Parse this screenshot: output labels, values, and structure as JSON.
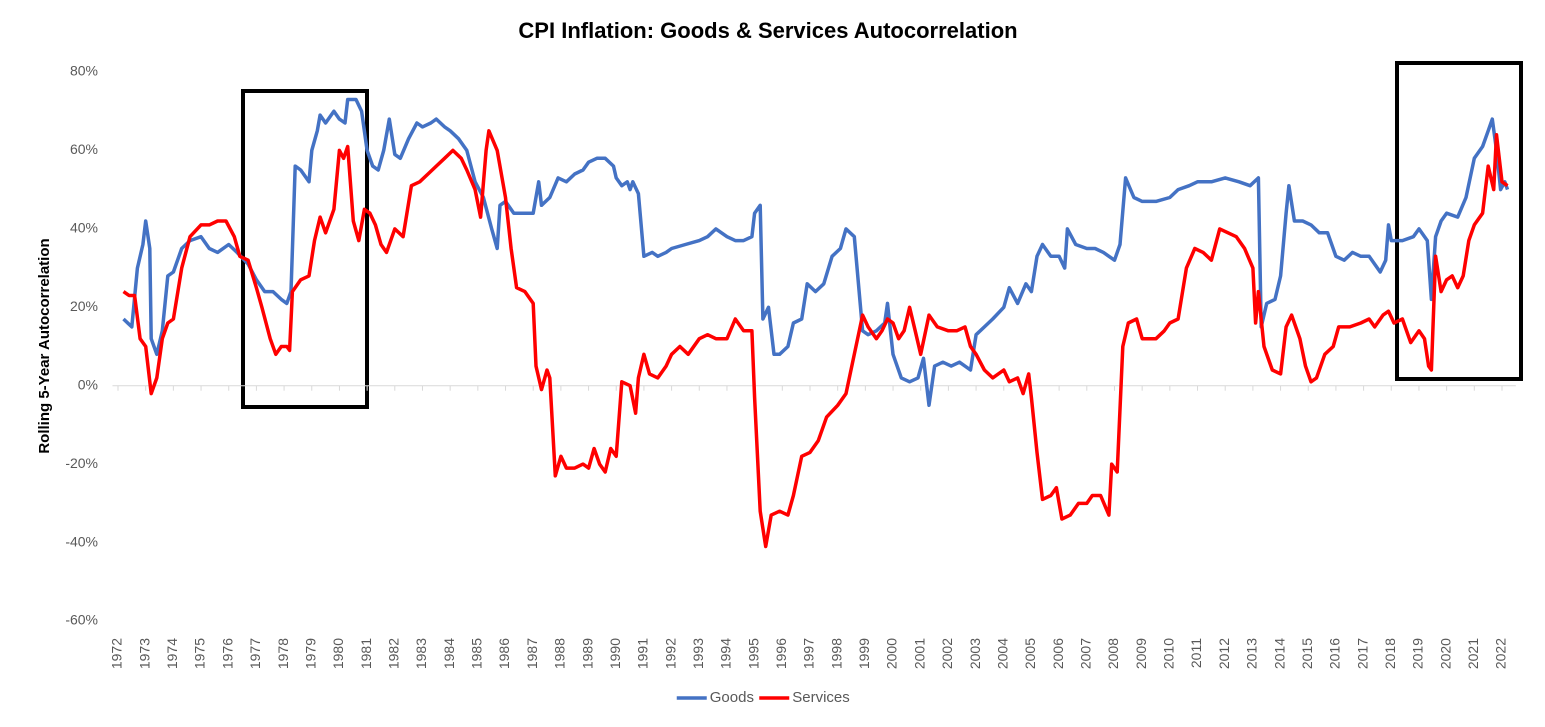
{
  "chart_data": {
    "type": "line",
    "title": "CPI Inflation: Goods & Services Autocorrelation",
    "y_label": "Rolling 5-Year Autocorrelation",
    "xlim": [
      1971.8,
      2022.5
    ],
    "xticks": [
      1972,
      1973,
      1974,
      1975,
      1976,
      1977,
      1978,
      1979,
      1980,
      1981,
      1982,
      1983,
      1984,
      1985,
      1986,
      1987,
      1988,
      1989,
      1990,
      1991,
      1992,
      1993,
      1994,
      1995,
      1996,
      1997,
      1998,
      1999,
      2000,
      2001,
      2002,
      2003,
      2004,
      2005,
      2006,
      2007,
      2008,
      2009,
      2010,
      2011,
      2012,
      2013,
      2014,
      2015,
      2016,
      2017,
      2018,
      2019,
      2020,
      2021,
      2022
    ],
    "ylim": [
      -60,
      80
    ],
    "yticks": [
      {
        "value": -60,
        "label": "-60%"
      },
      {
        "value": -40,
        "label": "-40%"
      },
      {
        "value": -20,
        "label": "-20%"
      },
      {
        "value": 0,
        "label": "0%"
      },
      {
        "value": 20,
        "label": "20%"
      },
      {
        "value": 40,
        "label": "40%"
      },
      {
        "value": 60,
        "label": "60%"
      },
      {
        "value": 80,
        "label": "80%"
      }
    ],
    "grid": false,
    "legend": "bottom",
    "series": [
      {
        "name": "Goods",
        "color": "#4472c4",
        "x": [
          1972.2,
          1972.5,
          1972.7,
          1972.9,
          1973.0,
          1973.15,
          1973.2,
          1973.4,
          1973.6,
          1973.8,
          1974.0,
          1974.3,
          1974.6,
          1975.0,
          1975.3,
          1975.6,
          1976.0,
          1976.3,
          1976.7,
          1977.0,
          1977.3,
          1977.6,
          1977.9,
          1978.1,
          1978.25,
          1978.4,
          1978.6,
          1978.9,
          1979.0,
          1979.2,
          1979.3,
          1979.5,
          1979.8,
          1980.0,
          1980.2,
          1980.3,
          1980.6,
          1980.8,
          1981.0,
          1981.2,
          1981.4,
          1981.6,
          1981.8,
          1982.0,
          1982.2,
          1982.5,
          1982.8,
          1983.0,
          1983.3,
          1983.5,
          1983.8,
          1984.0,
          1984.3,
          1984.6,
          1984.9,
          1985.2,
          1985.5,
          1985.7,
          1985.8,
          1986.0,
          1986.3,
          1986.6,
          1987.0,
          1987.2,
          1987.3,
          1987.6,
          1987.9,
          1988.2,
          1988.5,
          1988.8,
          1989.0,
          1989.3,
          1989.6,
          1989.9,
          1990.0,
          1990.2,
          1990.4,
          1990.5,
          1990.6,
          1990.8,
          1991.0,
          1991.3,
          1991.5,
          1991.8,
          1992.0,
          1992.5,
          1993.0,
          1993.3,
          1993.6,
          1994.0,
          1994.3,
          1994.6,
          1994.9,
          1995.0,
          1995.2,
          1995.3,
          1995.5,
          1995.7,
          1995.9,
          1996.2,
          1996.4,
          1996.7,
          1996.9,
          1997.2,
          1997.5,
          1997.8,
          1998.1,
          1998.3,
          1998.6,
          1998.9,
          1999.1,
          1999.4,
          1999.7,
          1999.8,
          2000.0,
          2000.3,
          2000.6,
          2000.9,
          2001.1,
          2001.3,
          2001.5,
          2001.8,
          2002.1,
          2002.4,
          2002.8,
          2003.0,
          2003.3,
          2003.6,
          2004.0,
          2004.2,
          2004.5,
          2004.8,
          2005.0,
          2005.2,
          2005.4,
          2005.7,
          2006.0,
          2006.2,
          2006.3,
          2006.6,
          2007.0,
          2007.3,
          2007.6,
          2007.8,
          2008.0,
          2008.2,
          2008.4,
          2008.7,
          2009.0,
          2009.5,
          2010.0,
          2010.3,
          2010.7,
          2011.0,
          2011.5,
          2012.0,
          2012.5,
          2012.9,
          2013.2,
          2013.3,
          2013.5,
          2013.8,
          2014.0,
          2014.2,
          2014.3,
          2014.5,
          2014.8,
          2015.1,
          2015.4,
          2015.7,
          2016.0,
          2016.3,
          2016.6,
          2016.9,
          2017.2,
          2017.6,
          2017.8,
          2017.9,
          2018.0,
          2018.4,
          2018.8,
          2019.0,
          2019.3,
          2019.45,
          2019.6,
          2019.8,
          2020.0,
          2020.4,
          2020.7,
          2021.0,
          2021.3,
          2021.5,
          2021.65,
          2021.8,
          2021.95,
          2022.1,
          2022.2
        ],
        "values": [
          17,
          15,
          30,
          36,
          42,
          35,
          12,
          8,
          14,
          28,
          29,
          35,
          37,
          38,
          35,
          34,
          36,
          34,
          31,
          27,
          24,
          24,
          22,
          21,
          24,
          56,
          55,
          52,
          60,
          65,
          69,
          67,
          70,
          68,
          67,
          73,
          73,
          70,
          60,
          56,
          55,
          60,
          68,
          59,
          58,
          63,
          67,
          66,
          67,
          68,
          66,
          65,
          63,
          60,
          52,
          48,
          40,
          35,
          46,
          47,
          44,
          44,
          44,
          52,
          46,
          48,
          53,
          52,
          54,
          55,
          57,
          58,
          58,
          56,
          53,
          51,
          52,
          50,
          52,
          49,
          33,
          34,
          33,
          34,
          35,
          36,
          37,
          38,
          40,
          38,
          37,
          37,
          38,
          44,
          46,
          17,
          20,
          8,
          8,
          10,
          16,
          17,
          26,
          24,
          26,
          33,
          35,
          40,
          38,
          14,
          13,
          14,
          16,
          21,
          8,
          2,
          1,
          2,
          7,
          -5,
          5,
          6,
          5,
          6,
          4,
          13,
          15,
          17,
          20,
          25,
          21,
          26,
          24,
          33,
          36,
          33,
          33,
          30,
          40,
          36,
          35,
          35,
          34,
          33,
          32,
          36,
          53,
          48,
          47,
          47,
          48,
          50,
          51,
          52,
          52,
          53,
          52,
          51,
          53,
          15,
          21,
          22,
          28,
          44,
          51,
          42,
          42,
          41,
          39,
          39,
          33,
          32,
          34,
          33,
          33,
          29,
          32,
          41,
          37,
          37,
          38,
          40,
          37,
          22,
          38,
          42,
          44,
          43,
          48,
          58,
          61,
          65,
          68,
          60,
          50,
          52,
          50
        ]
      },
      {
        "name": "Services",
        "color": "#ff0000",
        "x": [
          1972.2,
          1972.4,
          1972.6,
          1972.8,
          1973.0,
          1973.2,
          1973.4,
          1973.6,
          1973.8,
          1974.0,
          1974.3,
          1974.6,
          1975.0,
          1975.3,
          1975.6,
          1975.9,
          1976.2,
          1976.4,
          1976.7,
          1977.0,
          1977.2,
          1977.5,
          1977.7,
          1977.9,
          1978.1,
          1978.2,
          1978.3,
          1978.6,
          1978.9,
          1979.1,
          1979.3,
          1979.5,
          1979.8,
          1980.0,
          1980.15,
          1980.3,
          1980.5,
          1980.7,
          1980.9,
          1981.1,
          1981.3,
          1981.5,
          1981.7,
          1982.0,
          1982.3,
          1982.6,
          1982.9,
          1983.2,
          1983.5,
          1983.8,
          1984.1,
          1984.4,
          1984.6,
          1984.9,
          1985.1,
          1985.3,
          1985.4,
          1985.7,
          1986.0,
          1986.2,
          1986.4,
          1986.7,
          1987.0,
          1987.1,
          1987.3,
          1987.5,
          1987.6,
          1987.8,
          1988.0,
          1988.2,
          1988.5,
          1988.8,
          1989.0,
          1989.2,
          1989.4,
          1989.6,
          1989.8,
          1990.0,
          1990.2,
          1990.5,
          1990.7,
          1990.8,
          1991.0,
          1991.2,
          1991.5,
          1991.8,
          1992.0,
          1992.3,
          1992.6,
          1993.0,
          1993.3,
          1993.6,
          1994.0,
          1994.3,
          1994.6,
          1994.9,
          1995.0,
          1995.2,
          1995.4,
          1995.6,
          1995.9,
          1996.2,
          1996.4,
          1996.7,
          1997.0,
          1997.3,
          1997.6,
          1998.0,
          1998.3,
          1998.6,
          1998.9,
          1999.1,
          1999.4,
          1999.6,
          1999.8,
          2000.0,
          2000.2,
          2000.4,
          2000.6,
          2000.8,
          2001.0,
          2001.3,
          2001.6,
          2002.0,
          2002.3,
          2002.6,
          2002.8,
          2003.0,
          2003.3,
          2003.6,
          2004.0,
          2004.2,
          2004.5,
          2004.7,
          2004.9,
          2005.0,
          2005.2,
          2005.4,
          2005.7,
          2005.9,
          2006.1,
          2006.4,
          2006.7,
          2007.0,
          2007.2,
          2007.5,
          2007.8,
          2007.9,
          2008.1,
          2008.3,
          2008.5,
          2008.8,
          2009.0,
          2009.5,
          2009.8,
          2010.0,
          2010.3,
          2010.6,
          2010.9,
          2011.2,
          2011.5,
          2011.8,
          2012.1,
          2012.4,
          2012.7,
          2013.0,
          2013.1,
          2013.2,
          2013.4,
          2013.7,
          2014.0,
          2014.2,
          2014.4,
          2014.7,
          2014.9,
          2015.1,
          2015.3,
          2015.6,
          2015.9,
          2016.1,
          2016.5,
          2016.9,
          2017.2,
          2017.4,
          2017.7,
          2017.9,
          2018.1,
          2018.4,
          2018.7,
          2019.0,
          2019.2,
          2019.35,
          2019.45,
          2019.6,
          2019.8,
          2020.0,
          2020.2,
          2020.4,
          2020.6,
          2020.8,
          2021.0,
          2021.3,
          2021.5,
          2021.7,
          2021.8,
          2022.0,
          2022.2
        ],
        "values": [
          24,
          23,
          23,
          12,
          10,
          -2,
          2,
          12,
          16,
          17,
          30,
          38,
          41,
          41,
          42,
          42,
          38,
          33,
          32,
          25,
          20,
          12,
          8,
          10,
          10,
          9,
          24,
          27,
          28,
          37,
          43,
          39,
          45,
          60,
          58,
          61,
          42,
          37,
          45,
          44,
          41,
          36,
          34,
          40,
          38,
          51,
          52,
          54,
          56,
          58,
          60,
          58,
          55,
          50,
          43,
          60,
          65,
          60,
          48,
          35,
          25,
          24,
          21,
          5,
          -1,
          4,
          2,
          -23,
          -18,
          -21,
          -21,
          -20,
          -21,
          -16,
          -20,
          -22,
          -16,
          -18,
          1,
          0,
          -7,
          2,
          8,
          3,
          2,
          5,
          8,
          10,
          8,
          12,
          13,
          12,
          12,
          17,
          14,
          14,
          -3,
          -32,
          -41,
          -33,
          -32,
          -33,
          -28,
          -18,
          -17,
          -14,
          -8,
          -5,
          -2,
          8,
          18,
          15,
          12,
          14,
          17,
          16,
          12,
          14,
          20,
          14,
          8,
          18,
          15,
          14,
          14,
          15,
          10,
          8,
          4,
          2,
          4,
          1,
          2,
          -2,
          3,
          -3,
          -17,
          -29,
          -28,
          -26,
          -34,
          -33,
          -30,
          -30,
          -28,
          -28,
          -33,
          -20,
          -22,
          10,
          16,
          17,
          12,
          12,
          14,
          16,
          17,
          30,
          35,
          34,
          32,
          40,
          39,
          38,
          35,
          30,
          16,
          24,
          10,
          4,
          3,
          15,
          18,
          12,
          5,
          1,
          2,
          8,
          10,
          15,
          15,
          16,
          17,
          15,
          18,
          19,
          16,
          17,
          11,
          14,
          12,
          5,
          4,
          33,
          24,
          27,
          28,
          25,
          28,
          37,
          41,
          44,
          56,
          50,
          64,
          52,
          51
        ]
      }
    ]
  }
}
